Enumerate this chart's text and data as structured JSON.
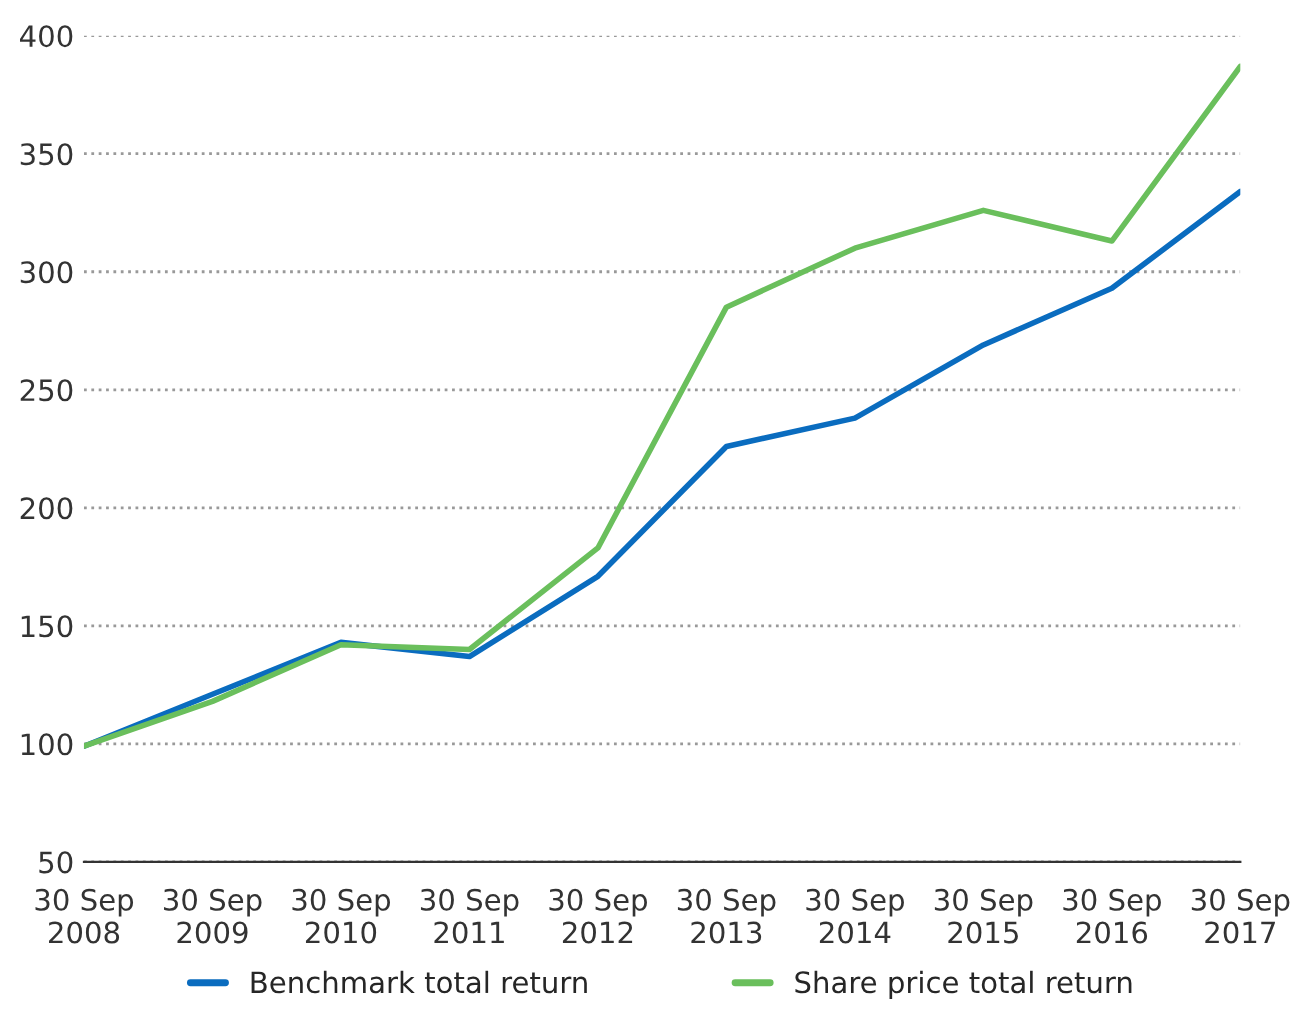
{
  "chart_data": {
    "type": "line",
    "categories": [
      "30 Sep\n2008",
      "30 Sep\n2009",
      "30 Sep\n2010",
      "30 Sep\n2011",
      "30 Sep\n2012",
      "30 Sep\n2013",
      "30 Sep\n2014",
      "30 Sep\n2015",
      "30 Sep\n2016",
      "30 Sep\n2017"
    ],
    "series": [
      {
        "name": "Benchmark total return",
        "color": "#0a6cbf",
        "values": [
          99,
          121,
          143,
          137,
          171,
          226,
          238,
          269,
          293,
          334
        ]
      },
      {
        "name": "Share price total return",
        "color": "#6abf5c",
        "values": [
          99,
          118,
          142,
          140,
          183,
          285,
          310,
          326,
          313,
          387
        ]
      }
    ],
    "ylim": [
      50,
      400
    ],
    "yticks": [
      50,
      100,
      150,
      200,
      250,
      300,
      350,
      400
    ],
    "grid": "y",
    "legend": "bottom",
    "line_style": "solid",
    "marker": "none"
  }
}
